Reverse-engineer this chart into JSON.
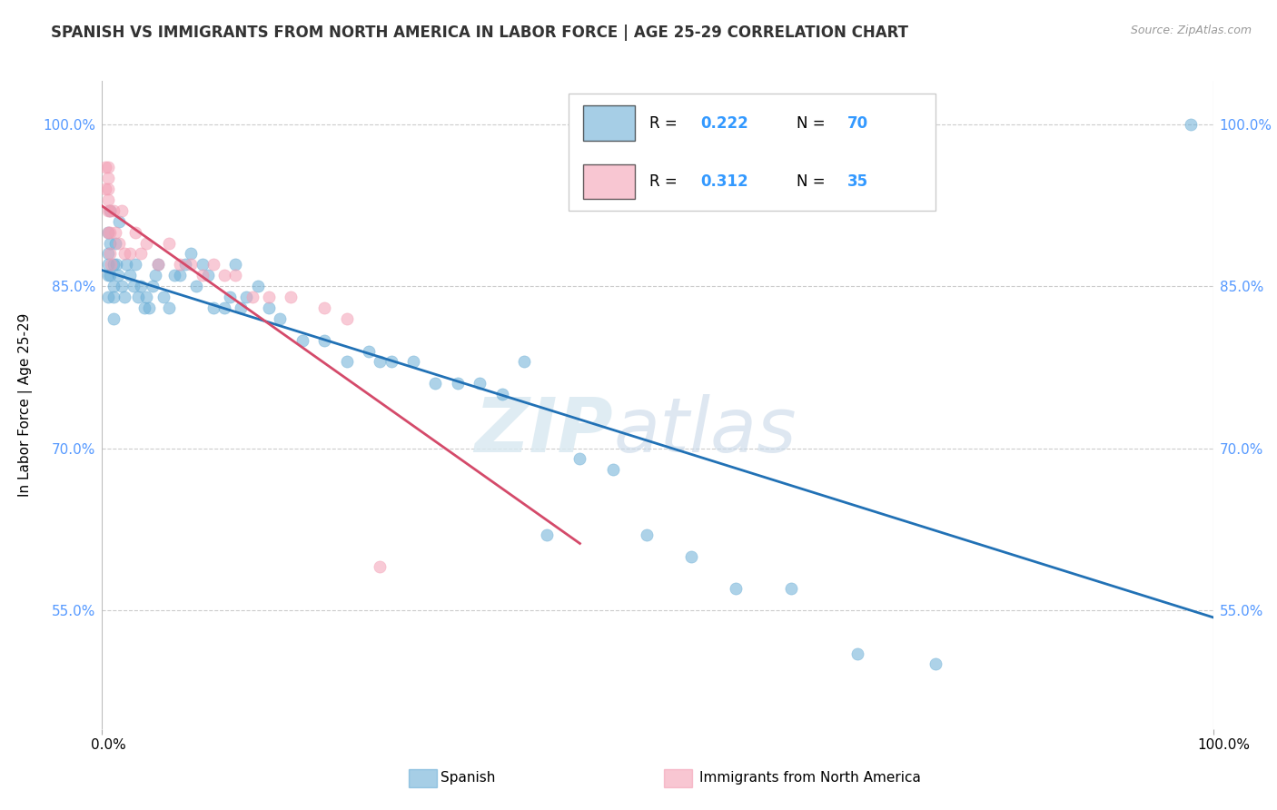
{
  "title": "SPANISH VS IMMIGRANTS FROM NORTH AMERICA IN LABOR FORCE | AGE 25-29 CORRELATION CHART",
  "source_text": "Source: ZipAtlas.com",
  "ylabel": "In Labor Force | Age 25-29",
  "xlim": [
    0.0,
    1.0
  ],
  "ylim": [
    0.44,
    1.04
  ],
  "yticks": [
    0.55,
    0.7,
    0.85,
    1.0
  ],
  "ytick_labels": [
    "55.0%",
    "70.0%",
    "85.0%",
    "100.0%"
  ],
  "xtick_labels_bottom": [
    "0.0%",
    "100.0%"
  ],
  "bottom_labels": [
    "Spanish",
    "Immigrants from North America"
  ],
  "legend_r1": "0.222",
  "legend_n1": "70",
  "legend_r2": "0.312",
  "legend_n2": "35",
  "blue_color": "#6baed6",
  "pink_color": "#f4a0b5",
  "blue_line_color": "#2171b5",
  "pink_line_color": "#d44a6a",
  "scatter_alpha": 0.55,
  "scatter_size": 90,
  "blue_scatter_x": [
    0.005,
    0.005,
    0.005,
    0.005,
    0.005,
    0.007,
    0.007,
    0.007,
    0.01,
    0.01,
    0.01,
    0.01,
    0.012,
    0.013,
    0.014,
    0.015,
    0.018,
    0.02,
    0.022,
    0.025,
    0.028,
    0.03,
    0.032,
    0.035,
    0.038,
    0.04,
    0.042,
    0.045,
    0.048,
    0.05,
    0.055,
    0.06,
    0.065,
    0.07,
    0.075,
    0.08,
    0.085,
    0.09,
    0.095,
    0.1,
    0.11,
    0.115,
    0.12,
    0.125,
    0.13,
    0.14,
    0.15,
    0.16,
    0.18,
    0.2,
    0.22,
    0.24,
    0.25,
    0.26,
    0.28,
    0.3,
    0.32,
    0.34,
    0.36,
    0.38,
    0.4,
    0.43,
    0.46,
    0.49,
    0.53,
    0.57,
    0.62,
    0.68,
    0.75,
    0.98
  ],
  "blue_scatter_y": [
    0.88,
    0.9,
    0.87,
    0.86,
    0.84,
    0.92,
    0.89,
    0.86,
    0.87,
    0.85,
    0.84,
    0.82,
    0.89,
    0.87,
    0.86,
    0.91,
    0.85,
    0.84,
    0.87,
    0.86,
    0.85,
    0.87,
    0.84,
    0.85,
    0.83,
    0.84,
    0.83,
    0.85,
    0.86,
    0.87,
    0.84,
    0.83,
    0.86,
    0.86,
    0.87,
    0.88,
    0.85,
    0.87,
    0.86,
    0.83,
    0.83,
    0.84,
    0.87,
    0.83,
    0.84,
    0.85,
    0.83,
    0.82,
    0.8,
    0.8,
    0.78,
    0.79,
    0.78,
    0.78,
    0.78,
    0.76,
    0.76,
    0.76,
    0.75,
    0.78,
    0.62,
    0.69,
    0.68,
    0.62,
    0.6,
    0.57,
    0.57,
    0.51,
    0.5,
    1.0
  ],
  "pink_scatter_x": [
    0.003,
    0.003,
    0.005,
    0.005,
    0.005,
    0.005,
    0.005,
    0.005,
    0.007,
    0.007,
    0.007,
    0.008,
    0.01,
    0.012,
    0.015,
    0.018,
    0.02,
    0.025,
    0.03,
    0.035,
    0.04,
    0.05,
    0.06,
    0.07,
    0.08,
    0.09,
    0.1,
    0.11,
    0.12,
    0.135,
    0.15,
    0.17,
    0.2,
    0.22,
    0.25
  ],
  "pink_scatter_y": [
    0.94,
    0.96,
    0.96,
    0.95,
    0.94,
    0.93,
    0.92,
    0.9,
    0.92,
    0.9,
    0.88,
    0.87,
    0.92,
    0.9,
    0.89,
    0.92,
    0.88,
    0.88,
    0.9,
    0.88,
    0.89,
    0.87,
    0.89,
    0.87,
    0.87,
    0.86,
    0.87,
    0.86,
    0.86,
    0.84,
    0.84,
    0.84,
    0.83,
    0.82,
    0.59
  ],
  "watermark_zip": "ZIP",
  "watermark_atlas": "atlas",
  "background_color": "#ffffff",
  "grid_color": "#cccccc"
}
